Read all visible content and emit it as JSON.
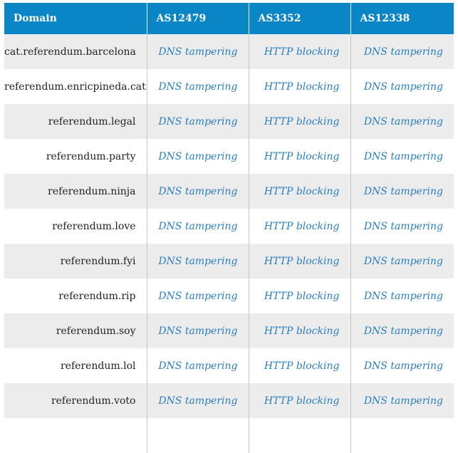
{
  "table": {
    "headers": [
      "Domain",
      "AS12479",
      "AS3352",
      "AS12338"
    ],
    "rows": [
      [
        "cat.referendum.barcelona",
        "DNS tampering",
        "HTTP blocking",
        "DNS tampering"
      ],
      [
        "referendum.enricpineda.cat",
        "DNS tampering",
        "HTTP blocking",
        "DNS tampering"
      ],
      [
        "referendum.legal",
        "DNS tampering",
        "HTTP blocking",
        "DNS tampering"
      ],
      [
        "referendum.party",
        "DNS tampering",
        "HTTP blocking",
        "DNS tampering"
      ],
      [
        "referendum.ninja",
        "DNS tampering",
        "HTTP blocking",
        "DNS tampering"
      ],
      [
        "referendum.love",
        "DNS tampering",
        "HTTP blocking",
        "DNS tampering"
      ],
      [
        "referendum.fyi",
        "DNS tampering",
        "HTTP blocking",
        "DNS tampering"
      ],
      [
        "referendum.rip",
        "DNS tampering",
        "HTTP blocking",
        "DNS tampering"
      ],
      [
        "referendum.soy",
        "DNS tampering",
        "HTTP blocking",
        "DNS tampering"
      ],
      [
        "referendum.lol",
        "DNS tampering",
        "HTTP blocking",
        "DNS tampering"
      ],
      [
        "referendum.voto",
        "DNS tampering",
        "HTTP blocking",
        "DNS tampering"
      ],
      [
        "",
        "",
        "",
        ""
      ]
    ]
  },
  "colors": {
    "header_bg": "#0a86c6",
    "header_text": "#ffffff",
    "stripe_bg": "#ececec",
    "status_text": "#2a7fc1"
  }
}
